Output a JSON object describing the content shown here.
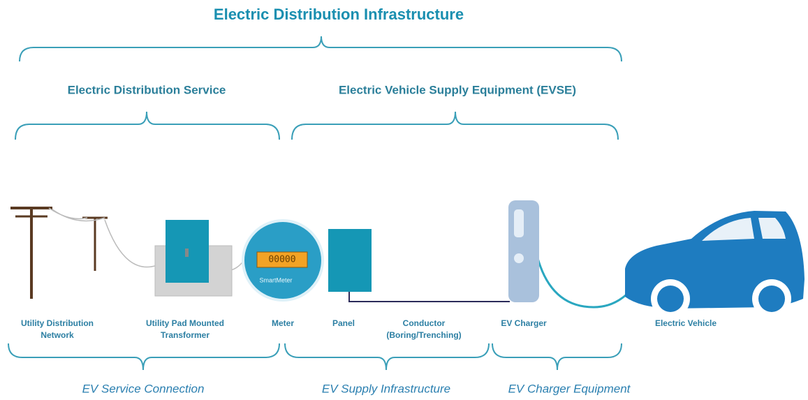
{
  "header": {
    "title": "Electric Distribution Infrastructure"
  },
  "sections": [
    {
      "label": "Electric Distribution Service"
    },
    {
      "label": "Electric Vehicle Supply Equipment (EVSE)"
    }
  ],
  "components": [
    {
      "lines": [
        "Utility Distribution",
        "Network"
      ]
    },
    {
      "lines": [
        "Utility Pad Mounted",
        "Transformer"
      ]
    },
    {
      "lines": [
        "Meter"
      ]
    },
    {
      "lines": [
        "Panel"
      ]
    },
    {
      "lines": [
        "Conductor",
        "(Boring/Trenching)"
      ]
    },
    {
      "lines": [
        "EV Charger"
      ]
    },
    {
      "lines": [
        "Electric Vehicle"
      ]
    }
  ],
  "meter": {
    "display": "00000",
    "brand": "SmartMeter"
  },
  "groups": [
    {
      "label": "EV Service Connection"
    },
    {
      "label": "EV Supply Infrastructure"
    },
    {
      "label": "EV Charger Equipment"
    }
  ]
}
